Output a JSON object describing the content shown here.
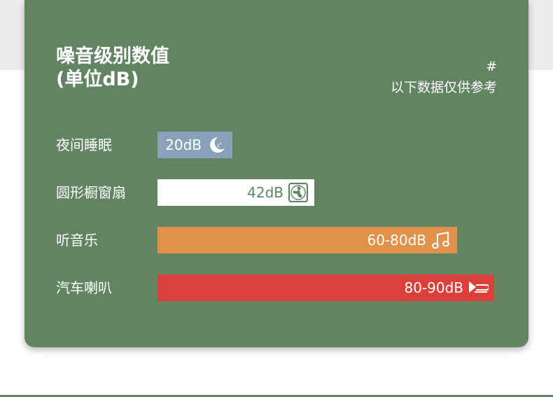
{
  "title_line1": "噪音级别数值",
  "title_line2": "(单位dB)",
  "note_symbol": "#",
  "note_text": "以下数据仅供参考",
  "chart_data": {
    "type": "bar",
    "orientation": "horizontal",
    "title": "噪音级别数值 (单位dB)",
    "unit": "dB",
    "categories": [
      "夜间睡眠",
      "圆形橱窗扇",
      "听音乐",
      "汽车喇叭"
    ],
    "value_labels": [
      "20dB",
      "42dB",
      "60-80dB",
      "80-90dB"
    ],
    "values": [
      20,
      42,
      70,
      85
    ],
    "value_ranges": [
      [
        20,
        20
      ],
      [
        42,
        42
      ],
      [
        60,
        80
      ],
      [
        80,
        90
      ]
    ],
    "xlim": [
      0,
      90
    ],
    "grid": false,
    "legend": "none",
    "icons": [
      "moon-icon",
      "fan-icon",
      "music-note-icon",
      "car-horn-icon"
    ],
    "bar_colors": [
      "#8aa1ba",
      "#ffffff",
      "#e0914a",
      "#dc3f3a"
    ],
    "label_colors": [
      "#ffffff",
      "#5f8563",
      "#ffffff",
      "#ffffff"
    ]
  },
  "colors": {
    "card_background": "#638463",
    "page_background": "#ffffff",
    "top_band": "#ececec"
  }
}
